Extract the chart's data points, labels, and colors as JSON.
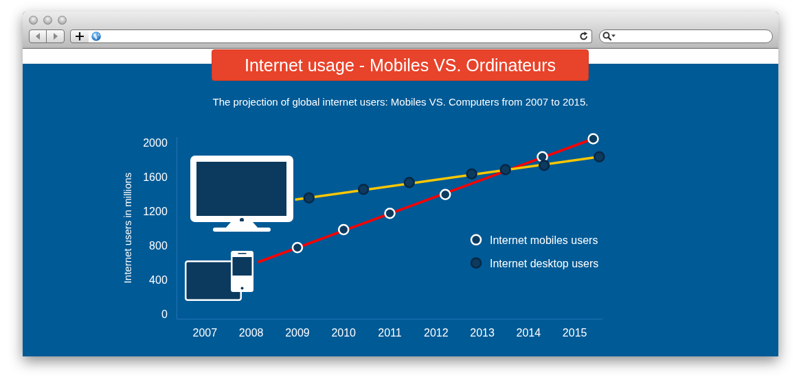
{
  "chart_data": {
    "type": "scatter",
    "title": "Internet usage - Mobiles VS. Ordinateurs",
    "subtitle": "The projection of global internet users: Mobiles VS. Computers from 2007 to 2015.",
    "ylabel": "Internet users in millions",
    "xlim": [
      2006.4,
      2015.6
    ],
    "xticks": [
      2007,
      2008,
      2009,
      2010,
      2011,
      2012,
      2013,
      2014,
      2015
    ],
    "ylim": [
      -50,
      2070
    ],
    "yticks": [
      0,
      400,
      800,
      1200,
      1600,
      2000
    ],
    "marker": "circle",
    "legend": "right",
    "series": [
      {
        "type": "line",
        "marker": "none",
        "color": "#ff0000",
        "x": [
          2008.15,
          2015.4
        ],
        "values": [
          610,
          2050
        ]
      },
      {
        "type": "line",
        "marker": "none",
        "color": "#fbc700",
        "x": [
          2008.95,
          2015.53
        ],
        "values": [
          1340,
          1840
        ]
      },
      {
        "name": "Internet mobiles users",
        "color": "#ffffff",
        "x": [
          2009.0,
          2010.0,
          2011.0,
          2012.2,
          2014.3,
          2015.4
        ],
        "values": [
          780,
          990,
          1180,
          1400,
          1840,
          2050
        ]
      },
      {
        "name": "Internet desktop users",
        "color": "#082846",
        "x": [
          2009.25,
          2010.43,
          2011.42,
          2012.77,
          2013.5,
          2014.34,
          2015.53
        ],
        "values": [
          1360,
          1460,
          1540,
          1640,
          1690,
          1740,
          1840
        ]
      }
    ]
  }
}
